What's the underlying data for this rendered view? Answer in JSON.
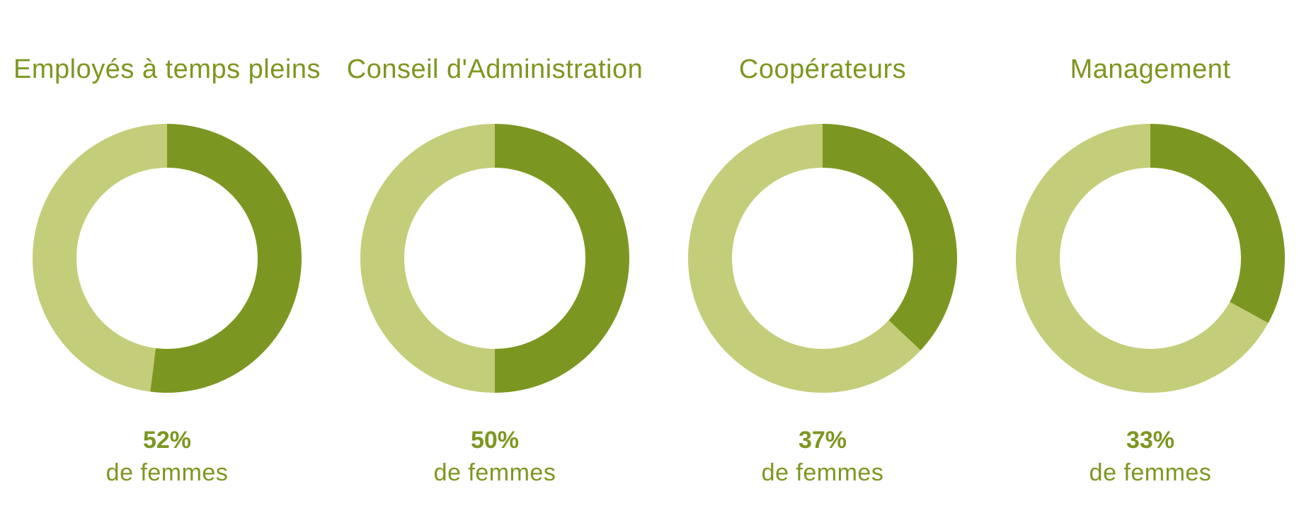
{
  "colors": {
    "accent": "#7c9721",
    "light": "#c4cd79",
    "background": "#ffffff"
  },
  "chart_data": [
    {
      "type": "pie",
      "title": "Employés à temps pleins",
      "slices": [
        {
          "label": "femmes",
          "value": 52
        },
        {
          "label": "",
          "value": 48
        }
      ],
      "value_label": "52%",
      "caption": "de femmes"
    },
    {
      "type": "pie",
      "title": "Conseil d'Administration",
      "slices": [
        {
          "label": "femmes",
          "value": 50
        },
        {
          "label": "",
          "value": 50
        }
      ],
      "value_label": "50%",
      "caption": "de femmes"
    },
    {
      "type": "pie",
      "title": "Coopérateurs",
      "slices": [
        {
          "label": "femmes",
          "value": 37
        },
        {
          "label": "",
          "value": 63
        }
      ],
      "value_label": "37%",
      "caption": "de femmes"
    },
    {
      "type": "pie",
      "title": "Management",
      "slices": [
        {
          "label": "femmes",
          "value": 33
        },
        {
          "label": "",
          "value": 67
        }
      ],
      "value_label": "33%",
      "caption": "de femmes"
    }
  ]
}
